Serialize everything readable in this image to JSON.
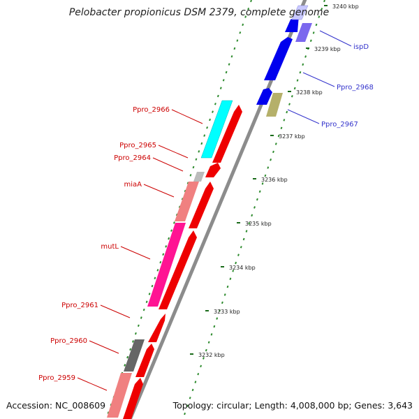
{
  "title": "Pelobacter propionicus DSM 2379, complete genome",
  "footer": {
    "accession": "Accession: NC_008609",
    "summary": "Topology: circular; Length: 4,008,000 bp; Genes: 3,643"
  },
  "scale_ticks": [
    "3232 kbp",
    "3233 kbp",
    "3234 kbp",
    "3235 kbp",
    "3236 kbp",
    "3237 kbp",
    "3238 kbp",
    "3239 kbp",
    "3240 kbp"
  ],
  "genes": [
    {
      "label": "ispD",
      "color": "#3333cc"
    },
    {
      "label": "Ppro_2968",
      "color": "#3333cc"
    },
    {
      "label": "Ppro_2967",
      "color": "#3333cc"
    },
    {
      "label": "Ppro_2966",
      "color": "#cc0000"
    },
    {
      "label": "Ppro_2965",
      "color": "#cc0000"
    },
    {
      "label": "Ppro_2964",
      "color": "#cc0000"
    },
    {
      "label": "miaA",
      "color": "#cc0000"
    },
    {
      "label": "mutL",
      "color": "#cc0000"
    },
    {
      "label": "Ppro_2961",
      "color": "#cc0000"
    },
    {
      "label": "Ppro_2960",
      "color": "#cc0000"
    },
    {
      "label": "Ppro_2959",
      "color": "#cc0000"
    }
  ],
  "colors": {
    "backbone": "#8c8c8c",
    "cds_forward": "#0000ee",
    "cds_reverse": "#ee0000",
    "dots": "#2e8b2e"
  }
}
